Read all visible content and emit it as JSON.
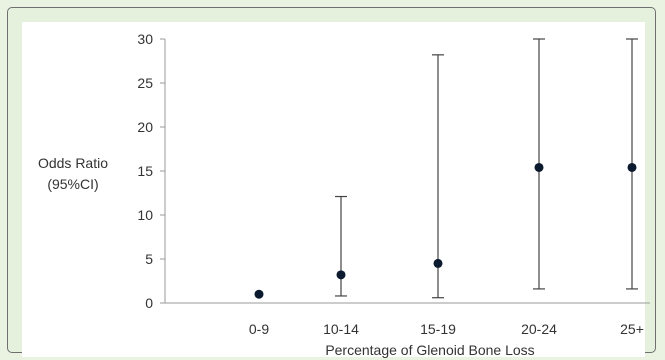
{
  "chart_data": {
    "type": "scatter",
    "title": "",
    "xlabel": "Percentage of Glenoid Bone Loss",
    "ylabel_lines": [
      "Odds Ratio",
      "(95%CI)"
    ],
    "categories": [
      "0-9",
      "10-14",
      "15-19",
      "20-24",
      "25+"
    ],
    "points": [
      {
        "category": "0-9",
        "y": 1.0,
        "ci_low": 1.0,
        "ci_high": 1.0
      },
      {
        "category": "10-14",
        "y": 3.2,
        "ci_low": 0.8,
        "ci_high": 12.1
      },
      {
        "category": "15-19",
        "y": 4.5,
        "ci_low": 0.6,
        "ci_high": 28.2
      },
      {
        "category": "20-24",
        "y": 15.4,
        "ci_low": 1.6,
        "ci_high": 30
      },
      {
        "category": "25+",
        "y": 15.4,
        "ci_low": 1.6,
        "ci_high": 30
      }
    ],
    "yticks": [
      0,
      5,
      10,
      15,
      20,
      25,
      30
    ],
    "ylim": [
      0,
      30
    ],
    "grid": false,
    "colors": {
      "marker": "#0b1a2e",
      "errorbar": "#444444",
      "axis": "#9a9a9a"
    }
  }
}
